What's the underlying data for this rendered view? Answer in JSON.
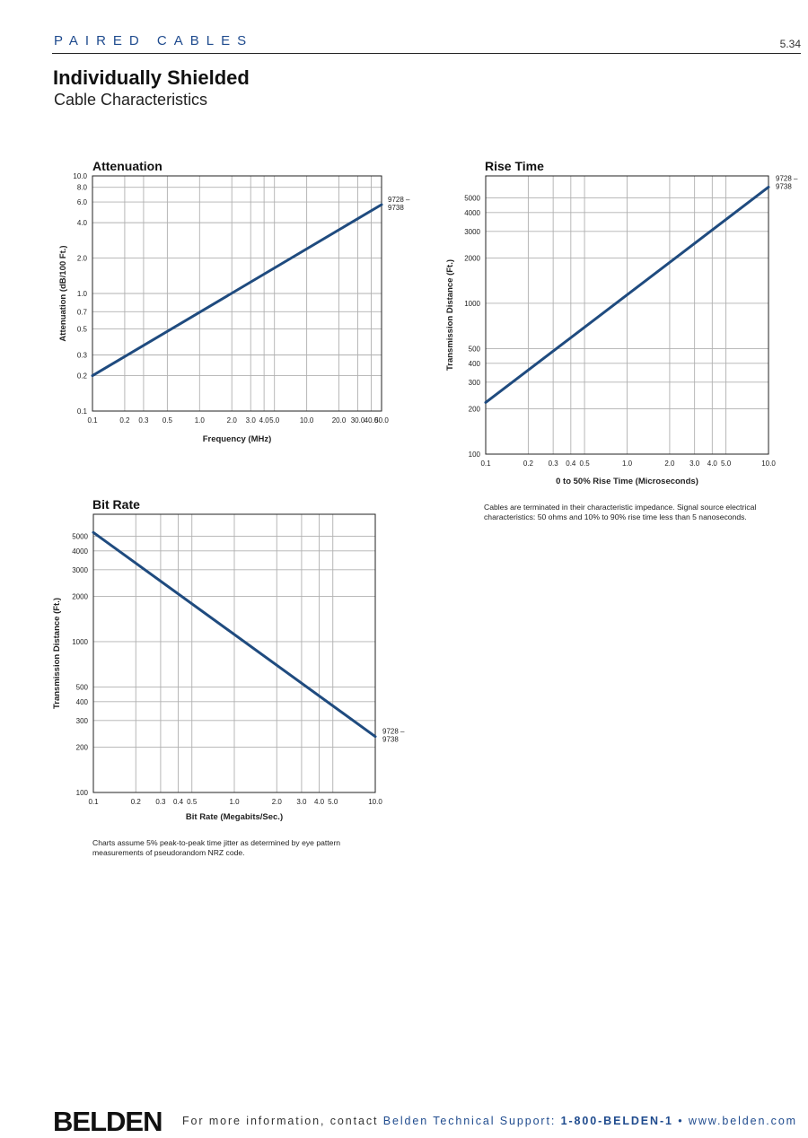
{
  "header": {
    "section": "PAIRED CABLES",
    "page_number": "5.34",
    "title": "Individually Shielded",
    "subtitle": "Cable Characteristics"
  },
  "style": {
    "line_color": "#1f4b7f",
    "grid_color": "#b0b0b0",
    "accent": "#1f4b8e"
  },
  "chart_data": [
    {
      "type": "line",
      "title": "Attenuation",
      "xlabel": "Frequency (MHz)",
      "ylabel": "Attenuation (dB/100 Ft.)",
      "xscale": "log",
      "yscale": "log",
      "xlim": [
        0.1,
        50.0
      ],
      "ylim": [
        0.1,
        10.0
      ],
      "x_ticks": [
        0.1,
        0.2,
        0.3,
        0.5,
        1.0,
        2.0,
        3.0,
        4.0,
        5.0,
        10.0,
        20.0,
        30.0,
        40.0,
        50.0
      ],
      "x_tick_labels": [
        "0.1",
        "0.2",
        "0.3",
        "0.5",
        "1.0",
        "2.0",
        "3.0",
        "4.0",
        "5.0",
        "10.0",
        "20.0",
        "30.0",
        "40.0",
        "50.0"
      ],
      "y_ticks": [
        0.1,
        0.2,
        0.3,
        0.5,
        0.7,
        1.0,
        2.0,
        4.0,
        6.0,
        8.0,
        10.0
      ],
      "y_tick_labels": [
        "0.1",
        "0.2",
        "0.3",
        "0.5",
        "0.7",
        "1.0",
        "2.0",
        "4.0",
        "6.0",
        "8.0",
        "10.0"
      ],
      "grid": true,
      "series": [
        {
          "name": "9728 – 9738",
          "x": [
            0.1,
            50.0
          ],
          "y": [
            0.2,
            5.7
          ]
        }
      ]
    },
    {
      "type": "line",
      "title": "Rise Time",
      "xlabel": "0 to 50% Rise Time (Microseconds)",
      "ylabel": "Transmission Distance (Ft.)",
      "xscale": "log",
      "yscale": "log",
      "xlim": [
        0.1,
        10.0
      ],
      "ylim": [
        100,
        7000
      ],
      "x_ticks": [
        0.1,
        0.2,
        0.3,
        0.4,
        0.5,
        1.0,
        2.0,
        3.0,
        4.0,
        5.0,
        10.0
      ],
      "x_tick_labels": [
        "0.1",
        "0.2",
        "0.3",
        "0.4",
        "0.5",
        "1.0",
        "2.0",
        "3.0",
        "4.0",
        "5.0",
        "10.0"
      ],
      "y_ticks": [
        100,
        200,
        300,
        400,
        500,
        1000,
        2000,
        3000,
        4000,
        5000
      ],
      "y_tick_labels": [
        "100",
        "200",
        "300",
        "400",
        "500",
        "1000",
        "2000",
        "3000",
        "4000",
        "5000"
      ],
      "grid": true,
      "series": [
        {
          "name": "9728 – 9738",
          "x": [
            0.1,
            10.0
          ],
          "y": [
            220,
            5900
          ]
        }
      ]
    },
    {
      "type": "line",
      "title": "Bit Rate",
      "xlabel": "Bit Rate (Megabits/Sec.)",
      "ylabel": "Transmission Distance (Ft.)",
      "xscale": "log",
      "yscale": "log",
      "xlim": [
        0.1,
        10.0
      ],
      "ylim": [
        100,
        7000
      ],
      "x_ticks": [
        0.1,
        0.2,
        0.3,
        0.4,
        0.5,
        1.0,
        2.0,
        3.0,
        4.0,
        5.0,
        10.0
      ],
      "x_tick_labels": [
        "0.1",
        "0.2",
        "0.3",
        "0.4",
        "0.5",
        "1.0",
        "2.0",
        "3.0",
        "4.0",
        "5.0",
        "10.0"
      ],
      "y_ticks": [
        100,
        200,
        300,
        400,
        500,
        1000,
        2000,
        3000,
        4000,
        5000
      ],
      "y_tick_labels": [
        "100",
        "200",
        "300",
        "400",
        "500",
        "1000",
        "2000",
        "3000",
        "4000",
        "5000"
      ],
      "grid": true,
      "series": [
        {
          "name": "9728 – 9738",
          "x": [
            0.1,
            10.0
          ],
          "y": [
            5300,
            235
          ]
        }
      ]
    }
  ],
  "notes": {
    "rise_time": "Cables are terminated in their characteristic impedance. Signal source electrical characteristics: 50 ohms and 10% to 90% rise time less than 5 nanoseconds.",
    "bit_rate": "Charts assume 5% peak-to-peak time jitter as determined by eye pattern measurements of pseudorandom NRZ code."
  },
  "footer": {
    "brand": "BELDEN",
    "text_prefix": "For more information, contact ",
    "text_support": "Belden Technical Support: ",
    "phone": "1-800-BELDEN-1",
    "separator": " • ",
    "website": "www.belden.com"
  }
}
